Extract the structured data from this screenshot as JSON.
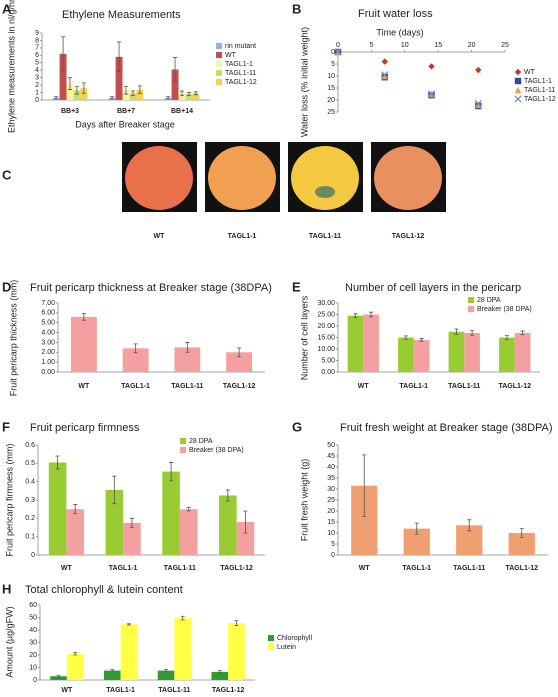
{
  "chart_data": [
    {
      "panel": "A",
      "type": "bar",
      "title": "Ethylene Measurements",
      "y_label": "Ethylene measurements in nl/g/hr",
      "x_label": "Days after Breaker stage",
      "categories": [
        "BB+3",
        "BB+7",
        "BB+14"
      ],
      "series": [
        {
          "name": "rin mutant",
          "color": "#8fb4e3",
          "values": [
            0.3,
            0.3,
            0.3
          ],
          "errors": [
            0.15,
            0.15,
            0.15
          ]
        },
        {
          "name": "WT",
          "color": "#c0504d",
          "values": [
            6.2,
            5.8,
            4.1
          ],
          "errors": [
            2.3,
            2.0,
            1.6
          ]
        },
        {
          "name": "TAGL1-1",
          "color": "#fdf2a0",
          "values": [
            2.2,
            1.3,
            0.9
          ],
          "errors": [
            0.8,
            0.5,
            0.3
          ]
        },
        {
          "name": "TAGL1-11",
          "color": "#c4e06a",
          "values": [
            1.3,
            0.9,
            0.8
          ],
          "errors": [
            0.5,
            0.3,
            0.2
          ]
        },
        {
          "name": "TAGL1-12",
          "color": "#f4d24a",
          "values": [
            1.6,
            1.4,
            0.9
          ],
          "errors": [
            0.7,
            0.5,
            0.2
          ]
        }
      ],
      "ylim": [
        0,
        9
      ],
      "yticks": [
        0,
        1,
        2,
        3,
        4,
        5,
        6,
        7,
        8,
        9
      ]
    },
    {
      "panel": "B",
      "type": "scatter",
      "title": "Fruit water loss",
      "x_label": "Time (days)",
      "y_label": "Water loss (% initial weight)",
      "y_inverted": true,
      "x_axis_top": true,
      "series": [
        {
          "name": "WT",
          "color": "#c0392b",
          "marker": "diamond",
          "x": [
            0,
            7,
            14,
            21
          ],
          "values": [
            0,
            4,
            6,
            7.5
          ]
        },
        {
          "name": "TAGL1-1",
          "color": "#3344aa",
          "marker": "square",
          "x": [
            0,
            7,
            14,
            21
          ],
          "values": [
            0,
            10.5,
            18,
            22.5
          ]
        },
        {
          "name": "TAGL1-11",
          "color": "#f0a040",
          "marker": "triangle",
          "x": [
            0,
            7,
            14,
            21
          ],
          "values": [
            0,
            10,
            17.5,
            22
          ]
        },
        {
          "name": "TAGL1-12",
          "color": "#6a8fc0",
          "marker": "x",
          "x": [
            0,
            7,
            14,
            21
          ],
          "values": [
            0,
            9.5,
            17.5,
            21.5
          ]
        }
      ],
      "xlim": [
        0,
        25
      ],
      "xticks": [
        0,
        5,
        10,
        15,
        20,
        25
      ],
      "ylim": [
        0,
        25
      ],
      "yticks": [
        0,
        5,
        10,
        15,
        20,
        25
      ]
    },
    {
      "panel": "D",
      "type": "bar",
      "title": "Fruit pericarp thickness at Breaker stage (38DPA)",
      "y_label": "Fruit pericarp thickness (mm)",
      "categories": [
        "WT",
        "TAGL1-1",
        "TAGL1-11",
        "TAGL1-12"
      ],
      "color": "#f4a0a0",
      "values": [
        5.6,
        2.4,
        2.5,
        2.0
      ],
      "errors": [
        0.35,
        0.45,
        0.5,
        0.45
      ],
      "ylim": [
        0,
        7
      ],
      "yticks": [
        {
          "value": 0,
          "label": "0.00"
        },
        {
          "value": 1,
          "label": "1.00"
        },
        {
          "value": 2,
          "label": "2.00"
        },
        {
          "value": 3,
          "label": "3.00"
        },
        {
          "value": 4,
          "label": "4.00"
        },
        {
          "value": 5,
          "label": "5.00"
        },
        {
          "value": 6,
          "label": "6.00"
        },
        {
          "value": 7,
          "label": "7.00"
        }
      ]
    },
    {
      "panel": "E",
      "type": "bar",
      "title": "Number of cell layers in the pericarp",
      "y_label": "Number of cell layers",
      "categories": [
        "WT",
        "TAGL1-1",
        "TAGL1-11",
        "TAGL1-12"
      ],
      "series": [
        {
          "name": "28 DPA",
          "color": "#99cc33",
          "values": [
            24.5,
            15,
            17.5,
            15
          ],
          "errors": [
            0.8,
            0.7,
            1.2,
            0.8
          ]
        },
        {
          "name": "Breaker (38 DPA)",
          "color": "#f4a0a0",
          "values": [
            25,
            14,
            17,
            17
          ],
          "errors": [
            1.0,
            0.6,
            1.0,
            0.8
          ]
        }
      ],
      "ylim": [
        0,
        30
      ],
      "yticks": [
        {
          "value": 0,
          "label": "0.00"
        },
        {
          "value": 5,
          "label": "5.00"
        },
        {
          "value": 10,
          "label": "10.00"
        },
        {
          "value": 15,
          "label": "15.00"
        },
        {
          "value": 20,
          "label": "20.00"
        },
        {
          "value": 25,
          "label": "25.00"
        },
        {
          "value": 30,
          "label": "30.00"
        }
      ]
    },
    {
      "panel": "F",
      "type": "bar",
      "title": "Fruit pericarp firmness",
      "y_label": "Fruit pericarp firmness (mm)",
      "categories": [
        "WT",
        "TAGL1-1",
        "TAGL1-11",
        "TAGL1-12"
      ],
      "series": [
        {
          "name": "28 DPA",
          "color": "#99cc33",
          "values": [
            0.505,
            0.355,
            0.455,
            0.325
          ],
          "errors": [
            0.035,
            0.075,
            0.05,
            0.03
          ]
        },
        {
          "name": "Breaker (38 DPA)",
          "color": "#f4a0a0",
          "values": [
            0.25,
            0.175,
            0.25,
            0.18
          ],
          "errors": [
            0.025,
            0.025,
            0.01,
            0.06
          ]
        }
      ],
      "ylim": [
        0,
        0.6
      ],
      "yticks": [
        0,
        0.1,
        0.2,
        0.3,
        0.4,
        0.5,
        0.6
      ]
    },
    {
      "panel": "G",
      "type": "bar",
      "title": "Fruit fresh weight at Breaker stage (38DPA)",
      "y_label": "Fruit fresh weight (g)",
      "categories": [
        "WT",
        "TAGL1-1",
        "TAGL1-11",
        "TAGL1-12"
      ],
      "color": "#f0a070",
      "values": [
        31.5,
        12,
        13.5,
        10
      ],
      "errors": [
        14,
        2.5,
        2.5,
        2
      ],
      "ylim": [
        0,
        50
      ],
      "yticks": [
        0,
        5,
        10,
        15,
        20,
        25,
        30,
        35,
        40,
        45,
        50
      ]
    },
    {
      "panel": "H",
      "type": "bar",
      "title": "Total chlorophyll & lutein content",
      "y_label": "Amount (µg/gFW)",
      "categories": [
        "WT",
        "TAGL1-1",
        "TAGL1-11",
        "TAGL1-12"
      ],
      "series": [
        {
          "name": "Chlorophyll",
          "color": "#339933",
          "values": [
            3,
            7.5,
            7.5,
            6.5
          ],
          "errors": [
            0.8,
            1,
            1,
            1
          ]
        },
        {
          "name": "Lutein",
          "color": "#ffff44",
          "values": [
            21,
            44.5,
            49.5,
            45.5
          ],
          "errors": [
            1,
            0.5,
            1.5,
            2
          ]
        }
      ],
      "ylim": [
        0,
        60
      ],
      "yticks": [
        0,
        10,
        20,
        30,
        40,
        50,
        60
      ]
    }
  ],
  "photo_panel": {
    "panel": "C",
    "labels": [
      "WT",
      "TAGL1-1",
      "TAGL1-11",
      "TAGL1-12"
    ]
  }
}
